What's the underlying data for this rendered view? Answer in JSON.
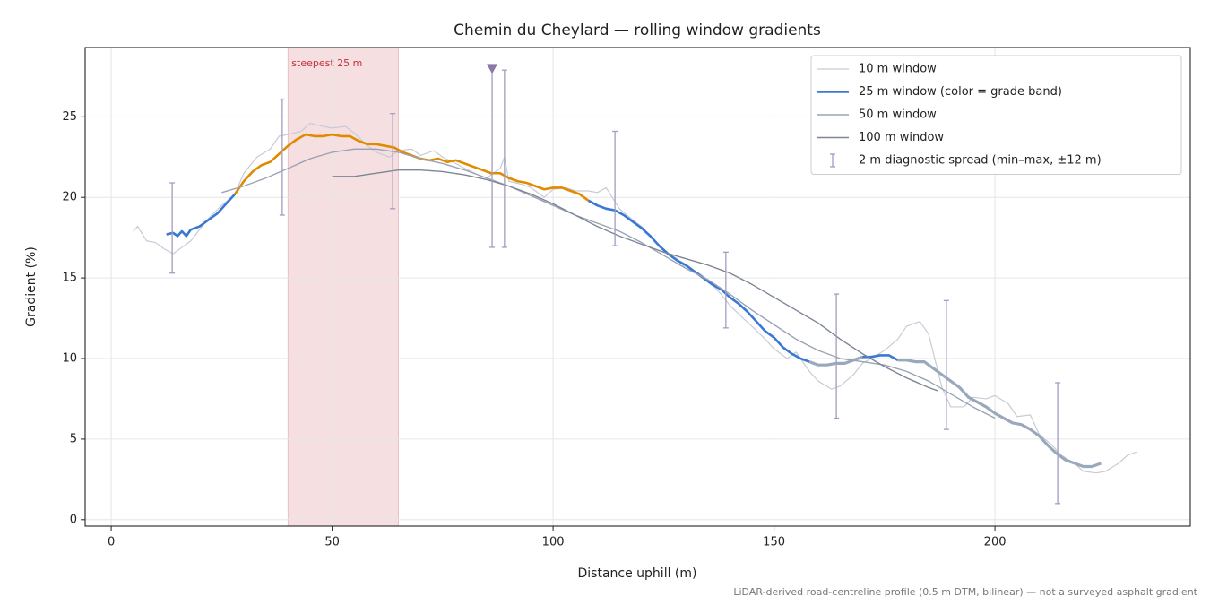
{
  "chart_data": {
    "type": "line",
    "title": "Chemin du Cheylard — rolling window gradients",
    "x_label": "Distance uphill (m)",
    "y_label": "Gradient (%)",
    "note": "LiDAR-derived road-centreline profile (0.5 m DTM, bilinear) — not a surveyed asphalt gradient",
    "xlim": [
      -5.9,
      244.2
    ],
    "ylim": [
      -0.4,
      29.3
    ],
    "xticks": [
      0,
      50,
      100,
      150,
      200
    ],
    "yticks": [
      0,
      5,
      10,
      15,
      20,
      25
    ],
    "grid": true,
    "legend": "upper right",
    "highlight": {
      "label": "steepest 25 m",
      "x": [
        40,
        65
      ],
      "color": "#f5dfe1",
      "label_color": "#c8303a"
    },
    "grade_bands": {
      "edges": [
        10,
        20
      ],
      "colors": [
        "#9aa8bb",
        "#3a78d4",
        "#e08a00"
      ]
    },
    "series": [
      {
        "name": "10 m window",
        "color": "#c6cbd6",
        "width": 1.2,
        "x": [
          5,
          6,
          8,
          10,
          12,
          14,
          16,
          18,
          20,
          22,
          25,
          28,
          30,
          33,
          36,
          38,
          40,
          43,
          45,
          48,
          50,
          53,
          55,
          58,
          60,
          63,
          65,
          68,
          70,
          73,
          75,
          78,
          80,
          83,
          85,
          88,
          89,
          90,
          93,
          95,
          98,
          100,
          103,
          105,
          108,
          110,
          112,
          115,
          118,
          120,
          123,
          125,
          128,
          130,
          133,
          135,
          138,
          140,
          143,
          145,
          148,
          150,
          153,
          155,
          158,
          160,
          163,
          165,
          168,
          170,
          172,
          175,
          178,
          180,
          183,
          185,
          188,
          190,
          193,
          195,
          198,
          200,
          203,
          205,
          208,
          210,
          213,
          215,
          218,
          220,
          223,
          225,
          228,
          230,
          232
        ],
        "values": [
          17.9,
          18.2,
          17.3,
          17.2,
          16.8,
          16.5,
          16.9,
          17.3,
          18.0,
          18.7,
          19.5,
          20.2,
          21.5,
          22.5,
          23.0,
          23.8,
          23.9,
          24.1,
          24.6,
          24.4,
          24.3,
          24.4,
          24.0,
          23.2,
          22.8,
          22.5,
          22.9,
          23.0,
          22.6,
          22.9,
          22.5,
          22.1,
          21.8,
          21.4,
          21.2,
          21.8,
          22.5,
          21.0,
          20.8,
          20.6,
          20.0,
          20.5,
          20.6,
          20.4,
          20.4,
          20.3,
          20.6,
          19.3,
          18.6,
          18.2,
          17.3,
          16.7,
          16.2,
          15.6,
          15.3,
          14.9,
          14.0,
          13.3,
          12.5,
          12.0,
          11.2,
          10.6,
          10.0,
          10.4,
          9.2,
          8.6,
          8.1,
          8.3,
          9.0,
          9.7,
          10.0,
          10.5,
          11.2,
          12.0,
          12.3,
          11.5,
          8.2,
          7.0,
          7.0,
          7.6,
          7.5,
          7.7,
          7.2,
          6.4,
          6.5,
          5.3,
          4.6,
          4.0,
          3.5,
          3.0,
          2.9,
          3.0,
          3.5,
          4.0,
          4.2
        ]
      },
      {
        "name": "25 m window (color = grade band)",
        "color": "#3a78d4",
        "width": 2.6,
        "banded": true,
        "x": [
          12.5,
          14,
          15,
          16,
          17,
          18,
          20,
          22,
          24,
          26,
          28,
          30,
          32,
          34,
          36,
          38,
          40,
          42,
          44,
          46,
          48,
          50,
          52,
          54,
          56,
          58,
          60,
          62,
          64,
          66,
          68,
          70,
          72,
          74,
          76,
          78,
          80,
          82,
          84,
          86,
          88,
          90,
          92,
          94,
          96,
          98,
          100,
          102,
          104,
          106,
          108,
          110,
          112,
          114,
          116,
          118,
          120,
          122,
          124,
          126,
          128,
          130,
          132,
          134,
          136,
          138,
          140,
          142,
          144,
          146,
          148,
          150,
          152,
          154,
          156,
          158,
          160,
          162,
          164,
          166,
          168,
          170,
          172,
          174,
          176,
          178,
          180,
          182,
          184,
          186,
          188,
          190,
          192,
          194,
          196,
          198,
          200,
          202,
          204,
          206,
          208,
          210,
          212,
          214,
          216,
          218,
          220,
          222,
          224
        ],
        "values": [
          17.7,
          17.8,
          17.6,
          17.9,
          17.6,
          18.0,
          18.2,
          18.6,
          19.0,
          19.6,
          20.2,
          21.0,
          21.6,
          22.0,
          22.2,
          22.7,
          23.2,
          23.6,
          23.9,
          23.8,
          23.8,
          23.9,
          23.8,
          23.8,
          23.5,
          23.3,
          23.3,
          23.2,
          23.1,
          22.8,
          22.6,
          22.4,
          22.3,
          22.4,
          22.2,
          22.3,
          22.1,
          21.9,
          21.7,
          21.5,
          21.5,
          21.2,
          21.0,
          20.9,
          20.7,
          20.5,
          20.6,
          20.6,
          20.4,
          20.2,
          19.8,
          19.5,
          19.3,
          19.2,
          18.9,
          18.5,
          18.1,
          17.6,
          17.0,
          16.5,
          16.1,
          15.8,
          15.4,
          15.0,
          14.6,
          14.3,
          13.8,
          13.4,
          12.9,
          12.3,
          11.7,
          11.3,
          10.7,
          10.3,
          10.0,
          9.8,
          9.6,
          9.6,
          9.7,
          9.7,
          9.9,
          10.1,
          10.1,
          10.2,
          10.2,
          9.9,
          9.9,
          9.8,
          9.8,
          9.4,
          9.0,
          8.6,
          8.2,
          7.6,
          7.3,
          7.0,
          6.6,
          6.3,
          6.0,
          5.9,
          5.6,
          5.2,
          4.6,
          4.1,
          3.7,
          3.5,
          3.3,
          3.3,
          3.5
        ]
      },
      {
        "name": "50 m window",
        "color": "#9aa3b5",
        "width": 1.4,
        "x": [
          25,
          30,
          35,
          40,
          45,
          50,
          55,
          60,
          65,
          70,
          75,
          80,
          85,
          90,
          95,
          100,
          105,
          110,
          115,
          120,
          125,
          130,
          135,
          140,
          145,
          150,
          155,
          160,
          165,
          170,
          175,
          180,
          185,
          190,
          195,
          200
        ],
        "values": [
          20.3,
          20.7,
          21.2,
          21.8,
          22.4,
          22.8,
          23.0,
          23.0,
          22.8,
          22.4,
          22.1,
          21.7,
          21.2,
          20.7,
          20.1,
          19.5,
          18.9,
          18.4,
          17.9,
          17.2,
          16.4,
          15.6,
          14.9,
          14.0,
          13.0,
          12.1,
          11.2,
          10.5,
          10.0,
          9.8,
          9.6,
          9.2,
          8.6,
          7.8,
          7.0,
          6.3
        ]
      },
      {
        "name": "100 m window",
        "color": "#7d8695",
        "width": 1.4,
        "x": [
          50,
          55,
          60,
          65,
          70,
          75,
          80,
          85,
          90,
          95,
          100,
          105,
          110,
          115,
          120,
          125,
          130,
          135,
          140,
          145,
          150,
          155,
          160,
          165,
          170,
          175,
          180,
          185,
          187
        ],
        "values": [
          21.3,
          21.3,
          21.5,
          21.7,
          21.7,
          21.6,
          21.4,
          21.1,
          20.7,
          20.2,
          19.6,
          18.9,
          18.2,
          17.6,
          17.1,
          16.6,
          16.2,
          15.8,
          15.3,
          14.6,
          13.8,
          13.0,
          12.2,
          11.2,
          10.3,
          9.5,
          8.8,
          8.2,
          8.0
        ]
      }
    ],
    "error_bars": {
      "name": "2 m diagnostic spread (min–max, ±12 m)",
      "color": "#a49cc0",
      "x": [
        13.8,
        38.7,
        63.7,
        86.2,
        89.0,
        114,
        139.1,
        164.1,
        189,
        214.2
      ],
      "low": [
        15.3,
        18.9,
        19.3,
        16.9,
        16.9,
        17.0,
        11.9,
        6.3,
        5.6,
        1.0
      ],
      "high": [
        20.9,
        26.1,
        25.2,
        28.0,
        27.9,
        24.1,
        16.6,
        14.0,
        13.6,
        8.5
      ]
    },
    "flag_marker": {
      "x": 86.2,
      "y": 28.0,
      "color": "#8a7aa8"
    }
  }
}
